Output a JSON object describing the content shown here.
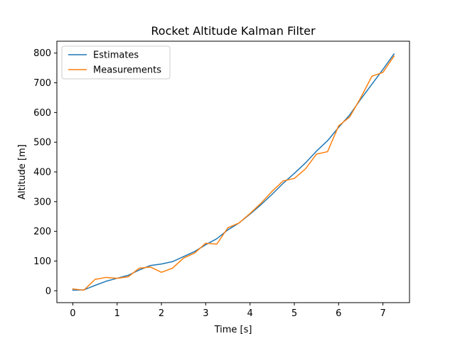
{
  "chart_data": {
    "type": "line",
    "title": "Rocket Altitude Kalman Filter",
    "xlabel": "Time [s]",
    "ylabel": "Altitude [m]",
    "xlim": [
      -0.36,
      7.6
    ],
    "ylim": [
      -40,
      840
    ],
    "xticks": [
      0,
      1,
      2,
      3,
      4,
      5,
      6,
      7
    ],
    "yticks": [
      0,
      100,
      200,
      300,
      400,
      500,
      600,
      700,
      800
    ],
    "grid": false,
    "legend_position": "top-left",
    "x": [
      0,
      0.25,
      0.5,
      0.75,
      1.0,
      1.25,
      1.5,
      1.75,
      2.0,
      2.25,
      2.5,
      2.75,
      3.0,
      3.25,
      3.5,
      3.75,
      4.0,
      4.25,
      4.5,
      4.75,
      5.0,
      5.25,
      5.5,
      5.75,
      6.0,
      6.25,
      6.5,
      6.75,
      7.0,
      7.25
    ],
    "series": [
      {
        "name": "Estimates",
        "color": "#1f77b4",
        "values": [
          2,
          3,
          18,
          32,
          42,
          52,
          70,
          85,
          90,
          98,
          115,
          132,
          155,
          175,
          205,
          228,
          258,
          290,
          325,
          362,
          395,
          430,
          470,
          505,
          550,
          592,
          645,
          695,
          745,
          797
        ]
      },
      {
        "name": "Measurements",
        "color": "#ff7f0e",
        "values": [
          6,
          2,
          38,
          45,
          42,
          47,
          76,
          80,
          62,
          76,
          110,
          127,
          160,
          157,
          212,
          228,
          260,
          295,
          335,
          370,
          378,
          410,
          460,
          468,
          555,
          585,
          650,
          722,
          735,
          790
        ]
      }
    ]
  }
}
